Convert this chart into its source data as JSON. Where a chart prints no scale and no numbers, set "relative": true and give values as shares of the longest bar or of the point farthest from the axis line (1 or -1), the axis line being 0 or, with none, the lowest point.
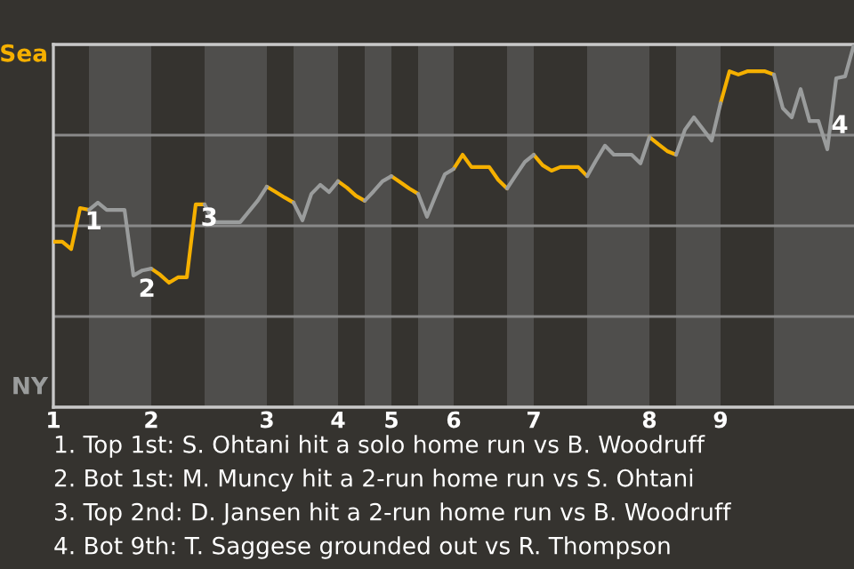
{
  "chart_data": {
    "type": "line",
    "relative": true,
    "categories": [
      "1",
      null,
      null,
      null,
      null,
      null,
      null,
      null,
      null,
      null,
      null,
      "2",
      null,
      null,
      null,
      null,
      null,
      null,
      null,
      null,
      null,
      null,
      null,
      null,
      "3",
      null,
      null,
      null,
      null,
      null,
      null,
      null,
      "4",
      null,
      null,
      null,
      null,
      null,
      "5",
      null,
      null,
      null,
      null,
      null,
      null,
      "6",
      null,
      null,
      null,
      null,
      null,
      null,
      null,
      null,
      "7",
      null,
      null,
      null,
      null,
      null,
      null,
      null,
      null,
      null,
      null,
      null,
      null,
      "8",
      null,
      null,
      null,
      null,
      null,
      null,
      null,
      "9",
      null,
      null,
      null,
      null,
      null,
      null,
      null,
      null,
      null,
      null,
      null,
      null,
      null,
      null,
      null
    ],
    "series": [
      {
        "color": "#f5b000",
        "values": [
          0.456,
          0.456,
          0.436,
          0.549,
          0.544,
          null,
          null,
          null,
          null,
          null,
          null,
          0.382,
          0.365,
          0.343,
          0.358,
          0.358,
          0.559,
          0.559,
          null,
          null,
          null,
          null,
          null,
          null,
          0.608,
          0.593,
          0.578,
          0.564,
          null,
          null,
          null,
          null,
          0.623,
          0.605,
          0.583,
          0.569,
          null,
          null,
          0.637,
          0.62,
          0.603,
          0.588,
          null,
          null,
          null,
          0.657,
          0.696,
          0.662,
          0.662,
          0.662,
          0.627,
          0.603,
          null,
          null,
          0.696,
          0.667,
          0.652,
          0.662,
          0.662,
          0.662,
          0.637,
          null,
          null,
          null,
          null,
          null,
          null,
          0.745,
          0.725,
          0.706,
          0.696,
          null,
          null,
          null,
          null,
          0.838,
          0.926,
          0.917,
          0.926,
          0.926,
          0.926,
          0.917,
          null,
          null,
          null,
          null,
          null,
          null,
          null,
          null,
          null
        ]
      },
      {
        "color": "#9a9c9c",
        "values": [
          null,
          null,
          null,
          null,
          0.544,
          0.564,
          0.544,
          0.544,
          0.544,
          0.363,
          0.377,
          0.382,
          null,
          null,
          null,
          null,
          null,
          0.559,
          0.51,
          0.51,
          0.51,
          0.51,
          0.54,
          0.57,
          0.608,
          null,
          null,
          0.564,
          0.515,
          0.588,
          0.613,
          0.593,
          0.623,
          null,
          null,
          0.569,
          0.595,
          0.623,
          0.637,
          null,
          null,
          0.588,
          0.525,
          0.585,
          0.642,
          0.657,
          null,
          null,
          null,
          null,
          null,
          0.603,
          0.64,
          0.676,
          0.696,
          null,
          null,
          null,
          null,
          null,
          0.637,
          0.68,
          0.721,
          0.696,
          0.696,
          0.696,
          0.672,
          0.745,
          null,
          null,
          0.696,
          0.765,
          0.799,
          0.767,
          0.735,
          0.838,
          null,
          null,
          null,
          null,
          null,
          0.917,
          0.824,
          0.799,
          0.877,
          0.789,
          0.789,
          0.711,
          0.907,
          0.912,
          1.0
        ]
      }
    ],
    "grid": "y",
    "annotations": [
      {
        "text": "1",
        "y": 0.549
      },
      {
        "text": "2",
        "y": 0.363
      },
      {
        "text": "3",
        "y": 0.559
      },
      "Sea",
      "NY",
      "4",
      "1. Top 1st: S. Ohtani hit a solo home run vs B. Woodruff",
      "2. Bot 1st: M. Muncy hit a 2-run home run vs S. Ohtani",
      "3. Top 2nd: D. Jansen hit a 2-run home run vs B. Woodruff",
      "4. Bot 9th: T. Saggese grounded out vs R. Thompson"
    ],
    "marker": "none",
    "line_style": "solid"
  }
}
